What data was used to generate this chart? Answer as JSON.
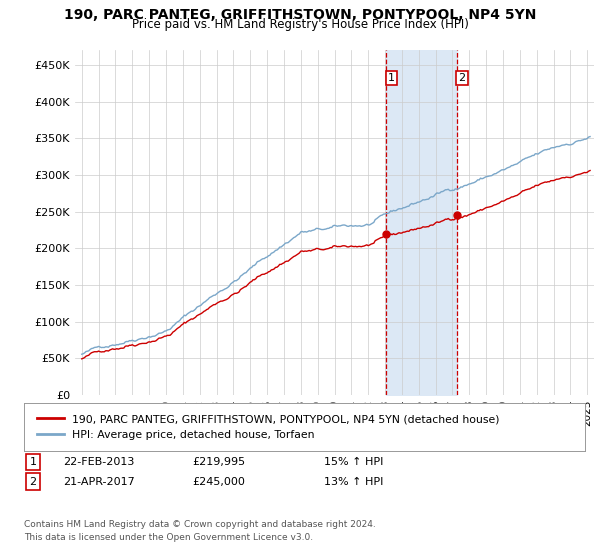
{
  "title": "190, PARC PANTEG, GRIFFITHSTOWN, PONTYPOOL, NP4 5YN",
  "subtitle": "Price paid vs. HM Land Registry's House Price Index (HPI)",
  "yticks": [
    0,
    50000,
    100000,
    150000,
    200000,
    250000,
    300000,
    350000,
    400000,
    450000
  ],
  "ytick_labels": [
    "£0",
    "£50K",
    "£100K",
    "£150K",
    "£200K",
    "£250K",
    "£300K",
    "£350K",
    "£400K",
    "£450K"
  ],
  "ylim": [
    0,
    470000
  ],
  "sale1_t": 2013.083,
  "sale1_price": 219995,
  "sale1_label": "1",
  "sale1_display": "22-FEB-2013",
  "sale1_amount": "£219,995",
  "sale1_pct": "15% ↑ HPI",
  "sale2_t": 2017.25,
  "sale2_price": 245000,
  "sale2_label": "2",
  "sale2_display": "21-APR-2017",
  "sale2_amount": "£245,000",
  "sale2_pct": "13% ↑ HPI",
  "line_red_color": "#cc0000",
  "line_blue_color": "#7ba7c9",
  "shade_color": "#dce8f5",
  "vline_color": "#cc0000",
  "legend_line1": "190, PARC PANTEG, GRIFFITHSTOWN, PONTYPOOL, NP4 5YN (detached house)",
  "legend_line2": "HPI: Average price, detached house, Torfaen",
  "footnote1": "Contains HM Land Registry data © Crown copyright and database right 2024.",
  "footnote2": "This data is licensed under the Open Government Licence v3.0.",
  "bg_color": "#ffffff",
  "grid_color": "#cccccc"
}
